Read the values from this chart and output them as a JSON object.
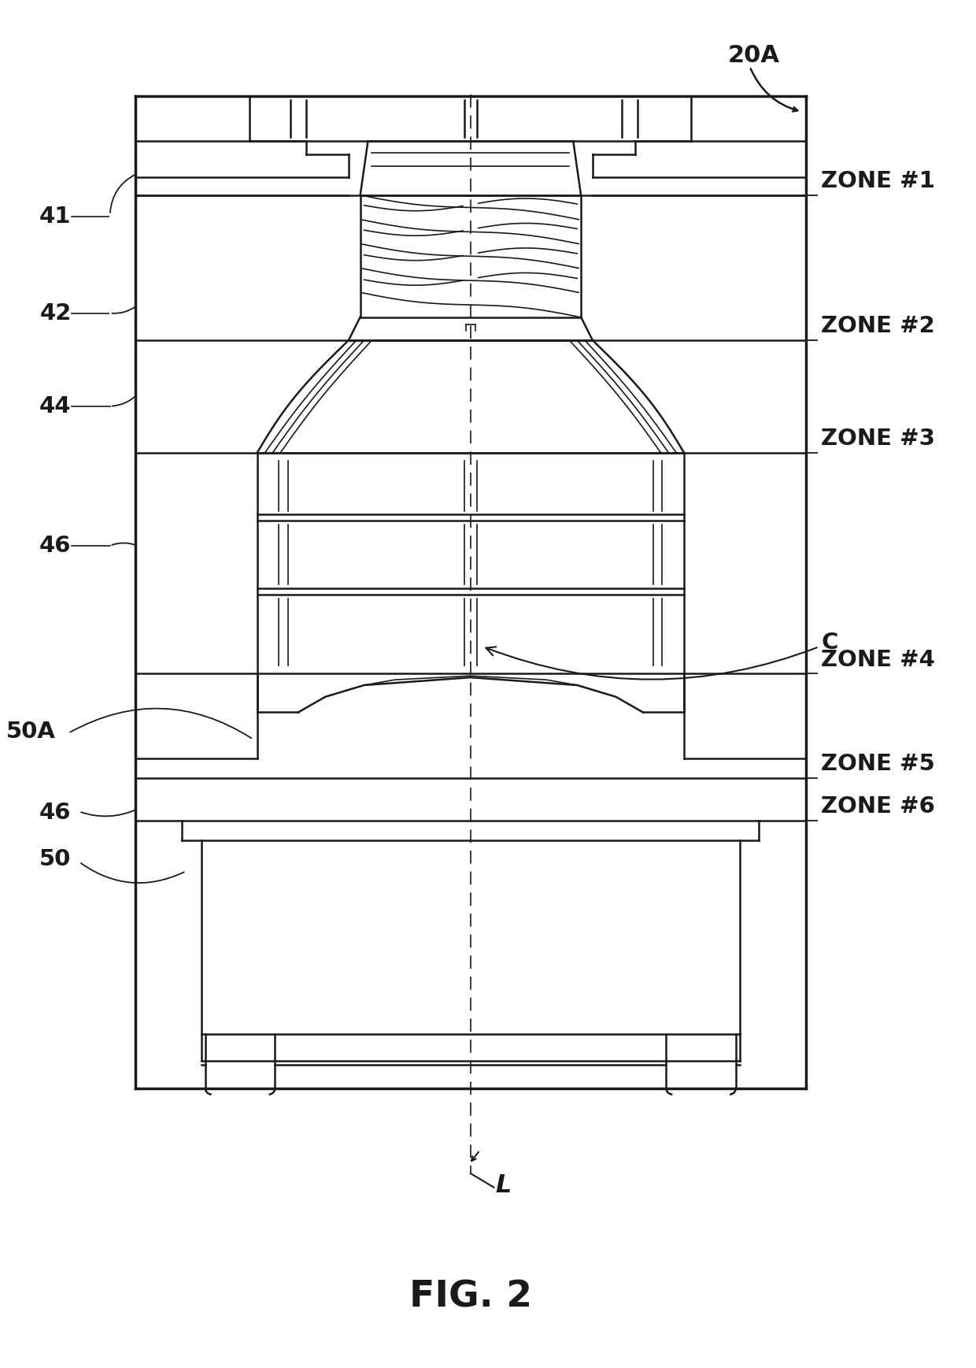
{
  "bg_color": "#ffffff",
  "line_color": "#1a1a1a",
  "fig_caption": "FIG. 2",
  "label_20A": "20A",
  "label_L": "L",
  "labels_left": [
    "41",
    "42",
    "44",
    "46",
    "50A",
    "46",
    "50"
  ],
  "labels_right": [
    "ZONE #1",
    "ZONE #2",
    "ZONE #3",
    "ZONE #4",
    "C",
    "ZONE #5",
    "ZONE #6"
  ],
  "lw_outer": 2.5,
  "lw_inner": 1.8,
  "lw_thin": 1.2
}
